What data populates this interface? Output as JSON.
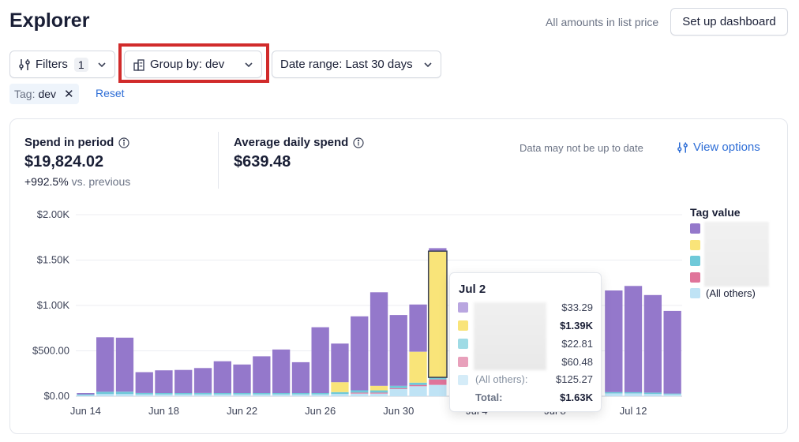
{
  "header": {
    "title": "Explorer",
    "list_price_note": "All amounts in list price",
    "setup_button": "Set up dashboard"
  },
  "toolbar": {
    "filters_label": "Filters",
    "filters_count": "1",
    "group_by_label": "Group by: dev",
    "date_range_label": "Date range: Last 30 days"
  },
  "active_filter": {
    "tag_key": "Tag:",
    "tag_value": "dev",
    "close": "✕",
    "reset": "Reset"
  },
  "metrics": {
    "spend_label": "Spend in period",
    "spend_value": "$19,824.02",
    "spend_delta": "+992.5%",
    "spend_delta_suffix": "vs. previous",
    "avg_label": "Average daily spend",
    "avg_value": "$639.48"
  },
  "notice": "Data may not be up to date",
  "view_options": "View options",
  "legend": {
    "title": "Tag value",
    "others_label": "(All others)"
  },
  "colors": {
    "purple": "#9478cb",
    "yellow": "#f9e479",
    "teal": "#6fc9d9",
    "pink": "#e0749a",
    "light_blue": "#bfe3f5",
    "accent_link": "#2d6dd6",
    "highlight": "#d12b2b"
  },
  "chart_data": {
    "type": "bar",
    "stacked": true,
    "ylim": [
      0,
      2000
    ],
    "y_ticks": [
      "$0.00",
      "$500.00",
      "$1.00K",
      "$1.50K",
      "$2.00K"
    ],
    "y_tick_values": [
      0,
      500,
      1000,
      1500,
      2000
    ],
    "x_ticks": [
      "Jun 14",
      "Jun 18",
      "Jun 22",
      "Jun 26",
      "Jun 30",
      "Jul 4",
      "Jul 8",
      "Jul 12"
    ],
    "x_tick_index": [
      0,
      4,
      8,
      12,
      16,
      20,
      24,
      28
    ],
    "categories": [
      "Jun 14",
      "Jun 15",
      "Jun 16",
      "Jun 17",
      "Jun 18",
      "Jun 19",
      "Jun 20",
      "Jun 21",
      "Jun 22",
      "Jun 23",
      "Jun 24",
      "Jun 25",
      "Jun 26",
      "Jun 27",
      "Jun 28",
      "Jun 29",
      "Jun 30",
      "Jul 1",
      "Jul 2",
      "Jul 3",
      "Jul 4",
      "Jul 5",
      "Jul 6",
      "Jul 7",
      "Jul 8",
      "Jul 9",
      "Jul 10",
      "Jul 11",
      "Jul 12",
      "Jul 13",
      "Jul 14"
    ],
    "series": [
      {
        "color_key": "light_blue",
        "values": [
          10,
          25,
          25,
          20,
          20,
          20,
          20,
          20,
          20,
          20,
          20,
          20,
          20,
          25,
          30,
          30,
          80,
          110,
          125,
          0,
          0,
          0,
          0,
          0,
          0,
          0,
          0,
          30,
          30,
          25,
          20
        ]
      },
      {
        "color_key": "pink",
        "values": [
          0,
          0,
          0,
          0,
          0,
          0,
          0,
          0,
          0,
          0,
          0,
          0,
          0,
          0,
          10,
          10,
          10,
          15,
          60,
          0,
          0,
          0,
          0,
          0,
          0,
          0,
          0,
          0,
          0,
          0,
          0
        ]
      },
      {
        "color_key": "teal",
        "values": [
          10,
          25,
          25,
          15,
          15,
          15,
          15,
          15,
          15,
          15,
          15,
          15,
          15,
          20,
          25,
          25,
          25,
          25,
          23,
          0,
          0,
          0,
          0,
          0,
          0,
          0,
          0,
          15,
          15,
          15,
          10
        ]
      },
      {
        "color_key": "yellow",
        "values": [
          0,
          0,
          0,
          0,
          0,
          0,
          0,
          0,
          0,
          0,
          0,
          0,
          0,
          110,
          0,
          50,
          0,
          340,
          1390,
          0,
          0,
          0,
          0,
          0,
          0,
          0,
          0,
          0,
          0,
          0,
          0
        ]
      },
      {
        "color_key": "purple",
        "values": [
          15,
          600,
          595,
          230,
          250,
          255,
          275,
          350,
          315,
          405,
          480,
          340,
          725,
          425,
          815,
          1030,
          780,
          520,
          33,
          0,
          0,
          0,
          0,
          0,
          0,
          0,
          0,
          1120,
          1170,
          1075,
          910
        ]
      }
    ],
    "hover": {
      "date": "Jul 2",
      "rows": [
        {
          "color_key": "purple",
          "value": "$33.29",
          "bold": false
        },
        {
          "color_key": "yellow",
          "value": "$1.39K",
          "bold": true
        },
        {
          "color_key": "teal",
          "value": "$22.81",
          "bold": false
        },
        {
          "color_key": "pink",
          "value": "$60.48",
          "bold": false
        },
        {
          "color_key": "light_blue",
          "value": "$125.27",
          "bold": false
        }
      ],
      "others_label": "(All others):",
      "total_label": "Total:",
      "total_value": "$1.63K"
    }
  }
}
